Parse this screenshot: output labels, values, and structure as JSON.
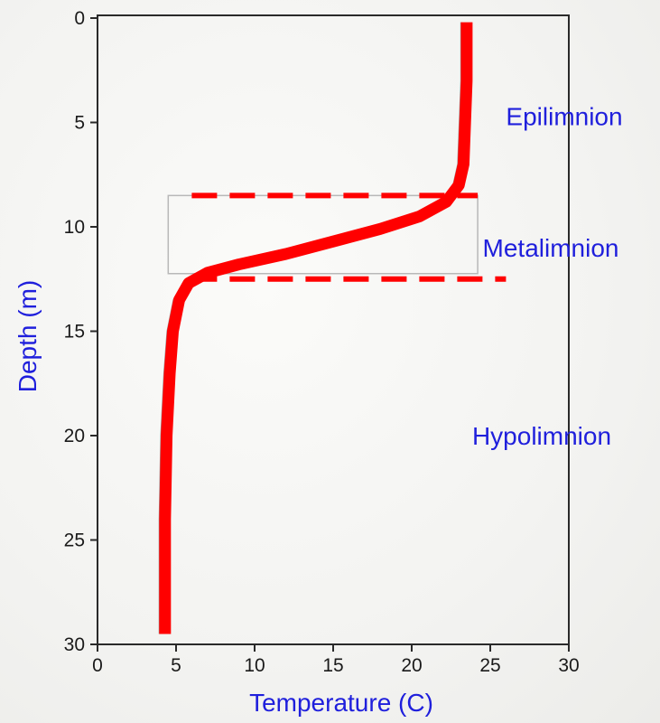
{
  "chart_data": {
    "type": "line",
    "xlabel": "Temperature (C)",
    "ylabel": "Depth (m)",
    "xlim": [
      0,
      30
    ],
    "ylim": [
      0,
      30
    ],
    "y_inverted": true,
    "x_ticks": [
      0,
      5,
      10,
      15,
      20,
      25,
      30
    ],
    "y_ticks": [
      0,
      5,
      10,
      15,
      20,
      25,
      30
    ],
    "grid": false,
    "series": [
      {
        "color": "#ff0000",
        "points": [
          [
            23.5,
            0.2
          ],
          [
            23.5,
            3
          ],
          [
            23.4,
            5
          ],
          [
            23.3,
            7
          ],
          [
            23.0,
            8
          ],
          [
            22.2,
            8.8
          ],
          [
            20.5,
            9.5
          ],
          [
            18.0,
            10.1
          ],
          [
            15.0,
            10.7
          ],
          [
            12.0,
            11.3
          ],
          [
            9.0,
            11.8
          ],
          [
            7.0,
            12.2
          ],
          [
            5.8,
            12.7
          ],
          [
            5.2,
            13.5
          ],
          [
            4.8,
            15.0
          ],
          [
            4.6,
            17.0
          ],
          [
            4.4,
            20.0
          ],
          [
            4.3,
            24.0
          ],
          [
            4.3,
            29.5
          ]
        ]
      }
    ],
    "reference_lines": [
      {
        "type": "horizontal",
        "style": "dashed",
        "color": "#ff0000",
        "depth": 8.5,
        "x_from": 6.0,
        "x_to": 24.2
      },
      {
        "type": "horizontal",
        "style": "dashed",
        "color": "#ff0000",
        "depth": 12.5,
        "x_from": 6.0,
        "x_to": 26.0
      }
    ],
    "zones": [
      {
        "label": "Epilimnion",
        "depth": 4.7
      },
      {
        "label": "Metalimnion",
        "depth": 11.0
      },
      {
        "label": "Hypolimnion",
        "depth": 20.0
      }
    ]
  }
}
